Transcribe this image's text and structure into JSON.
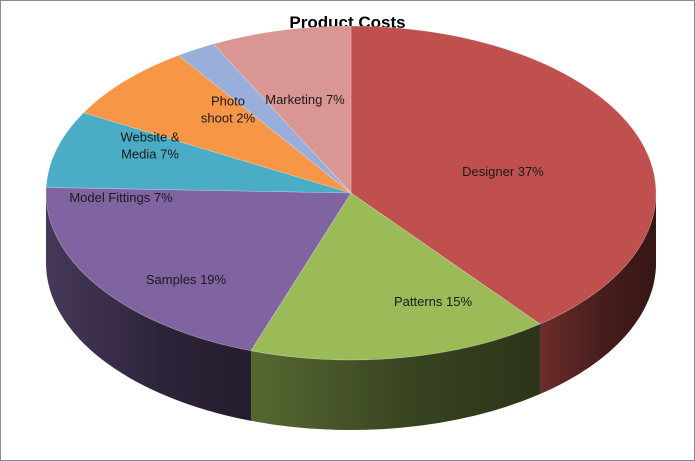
{
  "chart_data": {
    "type": "pie",
    "title": "Product Costs",
    "slices": [
      {
        "name": "Designer",
        "value": 37,
        "label_lines": [
          "Designer 37%"
        ],
        "color": "#c0504d"
      },
      {
        "name": "Patterns",
        "value": 15,
        "label_lines": [
          "Patterns 15%"
        ],
        "color": "#9bbb59"
      },
      {
        "name": "Samples",
        "value": 19,
        "label_lines": [
          "Samples 19%"
        ],
        "color": "#8064a2"
      },
      {
        "name": "Model Fittings",
        "value": 7,
        "label_lines": [
          "Model Fittings 7%"
        ],
        "color": "#4bacc6"
      },
      {
        "name": "Website & Media",
        "value": 7,
        "label_lines": [
          "Website &",
          "Media 7%"
        ],
        "color": "#f79646"
      },
      {
        "name": "Photo shoot",
        "value": 2,
        "label_lines": [
          "Photo",
          "shoot 2%"
        ],
        "color": "#9aaedb"
      },
      {
        "name": "Marketing",
        "value": 7,
        "label_lines": [
          "Marketing 7%"
        ],
        "color": "#d99694"
      }
    ],
    "style": "3d-pie",
    "legend": "none"
  }
}
